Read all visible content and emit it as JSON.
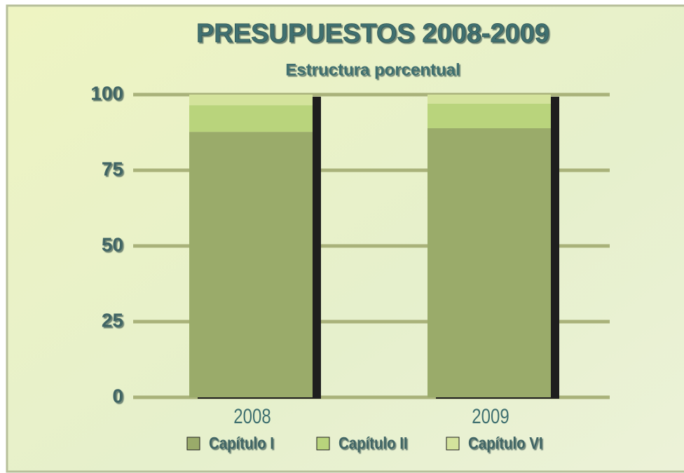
{
  "chart_data": {
    "type": "bar",
    "stacked": true,
    "title": "PRESUPUESTOS 2008-2009",
    "subtitle": "Estructura porcentual",
    "categories": [
      "2008",
      "2009"
    ],
    "series": [
      {
        "name": "Capítulo I",
        "color": "#9aab6a",
        "values": [
          87.7,
          88.9
        ]
      },
      {
        "name": "Capítulo II",
        "color": "#b9d47c",
        "values": [
          8.8,
          8.1
        ]
      },
      {
        "name": "Capítulo VI",
        "color": "#d4e39c",
        "values": [
          3.5,
          3.0
        ]
      }
    ],
    "ylim": [
      0,
      100
    ],
    "yticks": [
      0,
      25,
      50,
      75,
      100
    ],
    "grid": true,
    "legend": "bottom"
  }
}
